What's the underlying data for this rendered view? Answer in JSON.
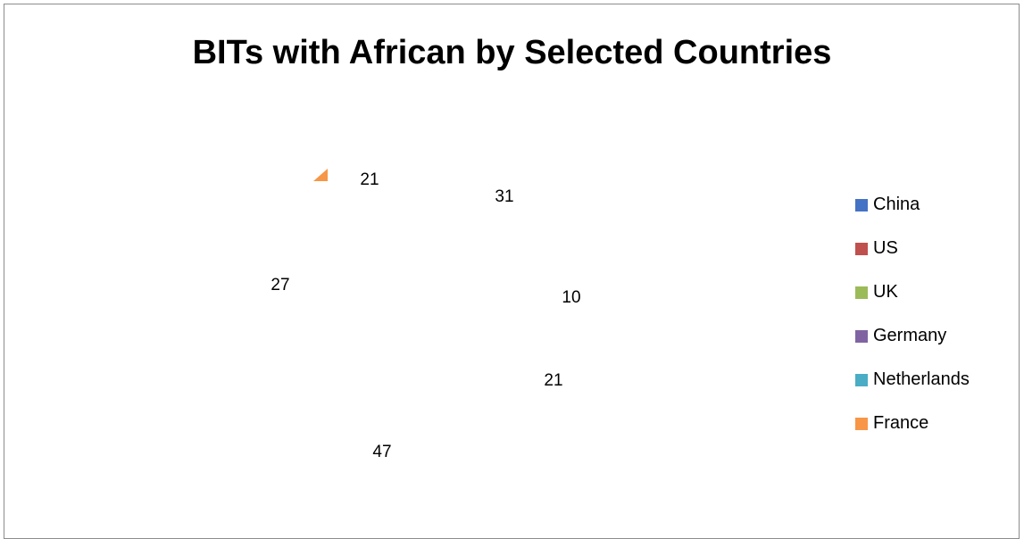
{
  "chart_data": {
    "type": "pie",
    "title": "BITs with African by Selected Countries",
    "categories": [
      "China",
      "US",
      "UK",
      "Germany",
      "Netherlands",
      "France"
    ],
    "values": [
      31,
      10,
      21,
      47,
      27,
      21
    ],
    "colors": [
      "#4472c4",
      "#c0504d",
      "#9bbb59",
      "#8064a2",
      "#4bacc6",
      "#f79646"
    ],
    "legend": "right",
    "data_labels": true
  }
}
